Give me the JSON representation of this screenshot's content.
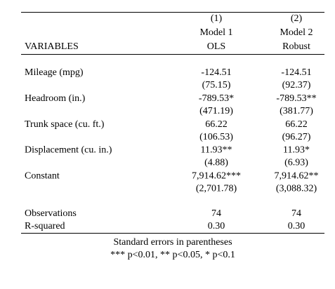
{
  "header": {
    "label": "VARIABLES",
    "columns": [
      [
        "(1)",
        "Model 1",
        "OLS"
      ],
      [
        "(2)",
        "Model 2",
        "Robust"
      ]
    ]
  },
  "rows": [
    {
      "label": "Mileage (mpg)",
      "cells": [
        "-124.51",
        "-124.51"
      ],
      "se": [
        "(75.15)",
        "(92.37)"
      ]
    },
    {
      "label": "Headroom (in.)",
      "cells": [
        "-789.53*",
        "-789.53**"
      ],
      "se": [
        "(471.19)",
        "(381.77)"
      ]
    },
    {
      "label": "Trunk space (cu. ft.)",
      "cells": [
        "66.22",
        "66.22"
      ],
      "se": [
        "(106.53)",
        "(96.27)"
      ]
    },
    {
      "label": "Displacement (cu. in.)",
      "cells": [
        "11.93**",
        "11.93*"
      ],
      "se": [
        "(4.88)",
        "(6.93)"
      ]
    },
    {
      "label": "Constant",
      "cells": [
        "7,914.62***",
        "7,914.62**"
      ],
      "se": [
        "(2,701.78)",
        "(3,088.32)"
      ]
    }
  ],
  "stats": [
    {
      "label": "Observations",
      "cells": [
        "74",
        "74"
      ]
    },
    {
      "label": "R-squared",
      "cells": [
        "0.30",
        "0.30"
      ]
    }
  ],
  "notes": [
    "Standard errors in parentheses",
    "*** p<0.01, ** p<0.05, * p<0.1"
  ]
}
